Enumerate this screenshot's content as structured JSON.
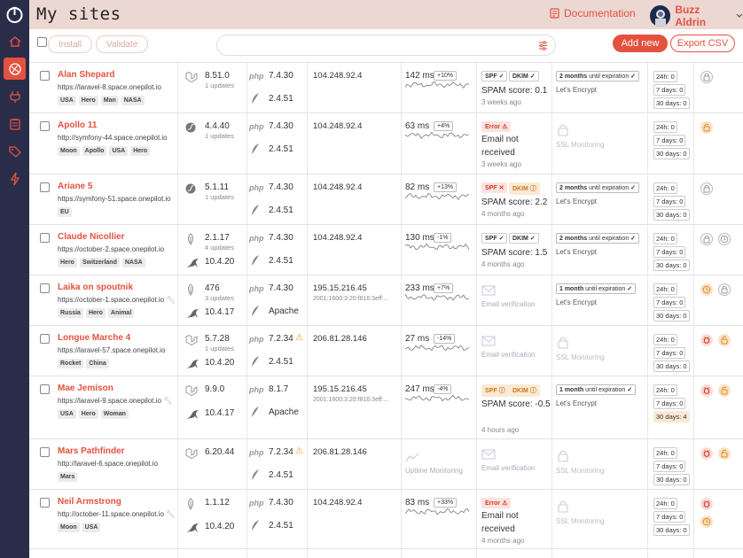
{
  "app": {
    "title": "My sites"
  },
  "header": {
    "documentation_label": "Documentation",
    "user_name": "Buzz Aldrin"
  },
  "toolbar": {
    "install_label": "Install",
    "validate_label": "Validate",
    "search_placeholder": "",
    "add_new_label": "Add new",
    "export_label": "Export CSV"
  },
  "sidebar": {
    "items": [
      {
        "icon": "home-icon",
        "active": false
      },
      {
        "icon": "globe-icon",
        "active": true
      },
      {
        "icon": "plug-icon",
        "active": false
      },
      {
        "icon": "clipboard-icon",
        "active": false
      },
      {
        "icon": "tag-icon",
        "active": false
      },
      {
        "icon": "lightning-icon",
        "active": false
      }
    ]
  },
  "colors": {
    "accent": "#e3523f",
    "sidebar": "#2a2d4a",
    "header": "#ecd8d3"
  },
  "sites": [
    {
      "name": "Alan Shepard",
      "url": "https://laravel-8.space.onepilot.io",
      "tags": [
        "USA",
        "Hero",
        "Man",
        "NASA"
      ],
      "fw_icon": "laravel",
      "fw_version": "8.51.0",
      "fw_updates": "1 updates",
      "has_wrench": false,
      "php": "7.4.30",
      "server_icon": "feather",
      "server": "2.4.51",
      "ip": "104.248.92.4",
      "ip6": "",
      "uptime": {
        "ms": "142 ms",
        "pct": "+10%"
      },
      "email": {
        "mode": "spam",
        "badges": [
          {
            "label": "SPF",
            "mark": "✓",
            "kind": "ok"
          },
          {
            "label": "DKIM",
            "mark": "✓",
            "kind": "ok"
          }
        ],
        "text": "SPAM score: 0.1",
        "ago": "3 weeks ago"
      },
      "ssl": {
        "expiry_bold": "2 months",
        "expiry_rest": " until expiration",
        "mark": "✓",
        "issuer": "Let's Encrypt"
      },
      "kpi": [
        "24h: 0",
        "7 days: 0",
        "30 days: 0"
      ],
      "kpi_warn": [
        false,
        false,
        false
      ],
      "alerts": [
        "lock-grey"
      ]
    },
    {
      "name": "Apollo 11",
      "url": "http://symfony-44.space.onepilot.io",
      "tags": [
        "Moon",
        "Apollo",
        "USA",
        "Hero"
      ],
      "fw_icon": "symfony",
      "fw_version": "4.4.40",
      "fw_updates": "1 updates",
      "has_wrench": false,
      "php": "7.4.30",
      "server_icon": "feather",
      "server": "2.4.51",
      "ip": "104.248.92.4",
      "ip6": "",
      "uptime": {
        "ms": "63 ms",
        "pct": "+4%"
      },
      "email": {
        "mode": "error",
        "badges": [
          {
            "label": "Error",
            "mark": "⚠",
            "kind": "err"
          }
        ],
        "text": "Email not received",
        "ago": "3 weeks ago"
      },
      "ssl": {
        "monitoring": "SSL Monitoring"
      },
      "kpi": [
        "24h: 0",
        "7 days: 0",
        "30 days: 0"
      ],
      "kpi_warn": [
        false,
        false,
        false
      ],
      "alerts": [
        "unlock-orange"
      ]
    },
    {
      "name": "Ariane 5",
      "url": "https://symfony-51.space.onepilot.io",
      "tags": [
        "EU"
      ],
      "fw_icon": "symfony",
      "fw_version": "5.1.11",
      "fw_updates": "1 updates",
      "has_wrench": false,
      "php": "7.4.30",
      "server_icon": "feather",
      "server": "2.4.51",
      "ip": "104.248.92.4",
      "ip6": "",
      "uptime": {
        "ms": "82 ms",
        "pct": "+13%"
      },
      "email": {
        "mode": "spam",
        "badges": [
          {
            "label": "SPF",
            "mark": "✕",
            "kind": "err"
          },
          {
            "label": "DKIM",
            "mark": "ⓘ",
            "kind": "warn"
          }
        ],
        "text": "SPAM score: 2.2",
        "ago": "4 months ago"
      },
      "ssl": {
        "expiry_bold": "2 months",
        "expiry_rest": " until expiration",
        "mark": "✓",
        "issuer": "Let's Encrypt"
      },
      "kpi": [
        "24h: 0",
        "7 days: 0",
        "30 days: 0"
      ],
      "kpi_warn": [
        false,
        false,
        false
      ],
      "alerts": [
        "lock-grey"
      ]
    },
    {
      "name": "Claude Nicollier",
      "url": "https://october-2.space.onepilot.io",
      "tags": [
        "Hero",
        "Switzerland",
        "NASA"
      ],
      "fw_icon": "october",
      "fw_version": "2.1.17",
      "fw_updates": "4 updates",
      "has_wrench": false,
      "php": "7.4.30",
      "server_icon": "feather",
      "server": "2.4.51",
      "db_icon": true,
      "db": "10.4.20",
      "ip": "104.248.92.4",
      "ip6": "",
      "uptime": {
        "ms": "130 ms",
        "pct": "-1%"
      },
      "email": {
        "mode": "spam",
        "badges": [
          {
            "label": "SPF",
            "mark": "✓",
            "kind": "ok"
          },
          {
            "label": "DKIM",
            "mark": "✓",
            "kind": "ok"
          }
        ],
        "text": "SPAM score: 1.5",
        "ago": "4 months ago"
      },
      "ssl": {
        "expiry_bold": "2 months",
        "expiry_rest": " until expiration",
        "mark": "✓",
        "issuer": "Let's Encrypt"
      },
      "kpi": [
        "24h: 0",
        "7 days: 0",
        "30 days: 0"
      ],
      "kpi_warn": [
        false,
        false,
        false
      ],
      "alerts": [
        "lock-grey",
        "clock-grey"
      ]
    },
    {
      "name": "Laika on spoutnik",
      "url": "https://october-1.space.onepilot.io",
      "tags": [
        "Russia",
        "Hero",
        "Animal"
      ],
      "fw_icon": "october",
      "fw_version": "476",
      "fw_updates": "3 updates",
      "has_wrench": true,
      "php": "7.4.30",
      "server_icon": "apache",
      "server": "Apache",
      "db_icon": true,
      "db": "10.4.17",
      "ip": "195.15.216.45",
      "ip6": "2001:1600:3:20:f816:3eff:...",
      "uptime": {
        "ms": "233 ms",
        "pct": "+7%"
      },
      "email": {
        "mode": "verif",
        "text": "Email verification"
      },
      "ssl": {
        "expiry_bold": "1 month",
        "expiry_rest": " until expiration",
        "mark": "✓",
        "issuer": "Let's Encrypt"
      },
      "kpi": [
        "24h: 0",
        "7 days: 0",
        "30 days: 0"
      ],
      "kpi_warn": [
        false,
        false,
        false
      ],
      "alerts": [
        "clock-orange",
        "lock-grey"
      ]
    },
    {
      "name": "Longue Marche 4",
      "url": "https://laravel-57.space.onepilot.io",
      "tags": [
        "Rocket",
        "China"
      ],
      "fw_icon": "laravel",
      "fw_version": "5.7.28",
      "fw_updates": "1 updates",
      "has_wrench": false,
      "php": "7.2.34",
      "php_warn": true,
      "server_icon": "feather",
      "server": "2.4.51",
      "db_icon": true,
      "db": "10.4.20",
      "ip": "206.81.28.146",
      "ip6": "",
      "uptime": {
        "ms": "27 ms",
        "pct": "-14%"
      },
      "email": {
        "mode": "verif",
        "text": "Email verification"
      },
      "ssl": {
        "monitoring": "SSL Monitoring"
      },
      "kpi": [
        "24h: 0",
        "7 days: 0",
        "30 days: 0"
      ],
      "kpi_warn": [
        false,
        false,
        false
      ],
      "alerts": [
        "bug-red",
        "unlock-orange"
      ]
    },
    {
      "name": "Mae Jemison",
      "url": "https://laravel-9.space.onepilot.io",
      "tags": [
        "USA",
        "Hero",
        "Woman"
      ],
      "fw_icon": "laravel",
      "fw_version": "9.9.0",
      "fw_updates": "",
      "has_wrench": true,
      "php": "8.1.7",
      "server_icon": "apache",
      "server": "Apache",
      "db_icon": true,
      "db": "10.4.17",
      "ip": "195.15.216.45",
      "ip6": "2001:1600:3:20:f816:3eff:...",
      "uptime": {
        "ms": "247 ms",
        "pct": "-4%"
      },
      "email": {
        "mode": "spam",
        "badges": [
          {
            "label": "SPF",
            "mark": "ⓘ",
            "kind": "warn"
          },
          {
            "label": "DKIM",
            "mark": "ⓘ",
            "kind": "warn"
          }
        ],
        "text": "SPAM score: -0.5",
        "ago": "4 hours ago"
      },
      "ssl": {
        "expiry_bold": "1 month",
        "expiry_rest": " until expiration",
        "mark": "✓",
        "issuer": "Let's Encrypt"
      },
      "kpi": [
        "24h: 0",
        "7 days: 0",
        "30 days: 4"
      ],
      "kpi_warn": [
        false,
        false,
        true
      ],
      "alerts": [
        "bug-red",
        "unlock-orange"
      ]
    },
    {
      "name": "Mars Pathfinder",
      "url": "http://laravel-6.space.onepilot.io",
      "tags": [
        "Mars"
      ],
      "fw_icon": "laravel",
      "fw_version": "6.20.44",
      "fw_updates": "",
      "has_wrench": false,
      "php": "7.2.34",
      "php_warn": true,
      "server_icon": "feather",
      "server": "2.4.51",
      "ip": "206.81.28.146",
      "ip6": "",
      "uptime": {
        "monitoring": "Uptime Monitoring"
      },
      "email": {
        "mode": "verif",
        "text": "Email verification"
      },
      "ssl": {
        "monitoring": "SSL Monitoring"
      },
      "kpi": [
        "24h: 0",
        "7 days: 0",
        "30 days: 0"
      ],
      "kpi_warn": [
        false,
        false,
        false
      ],
      "alerts": [
        "bug-red",
        "unlock-orange"
      ]
    },
    {
      "name": "Neil Armstrong",
      "url": "http://october-11.space.onepilot.io",
      "tags": [
        "Moon",
        "USA"
      ],
      "fw_icon": "october",
      "fw_version": "1.1.12",
      "fw_updates": "",
      "has_wrench": true,
      "php": "7.4.30",
      "server_icon": "feather",
      "server": "2.4.51",
      "db_icon": true,
      "db": "10.4.20",
      "ip": "104.248.92.4",
      "ip6": "",
      "uptime": {
        "ms": "83 ms",
        "pct": "+33%"
      },
      "email": {
        "mode": "error",
        "badges": [
          {
            "label": "Error",
            "mark": "⚠",
            "kind": "err"
          }
        ],
        "text": "Email not received",
        "ago": "4 months ago"
      },
      "ssl": {
        "monitoring": "SSL Monitoring"
      },
      "kpi": [
        "24h: 0",
        "7 days: 0",
        "30 days: 0"
      ],
      "kpi_warn": [
        false,
        false,
        false
      ],
      "alerts": [
        "bug-red",
        "clock-orange"
      ]
    }
  ]
}
